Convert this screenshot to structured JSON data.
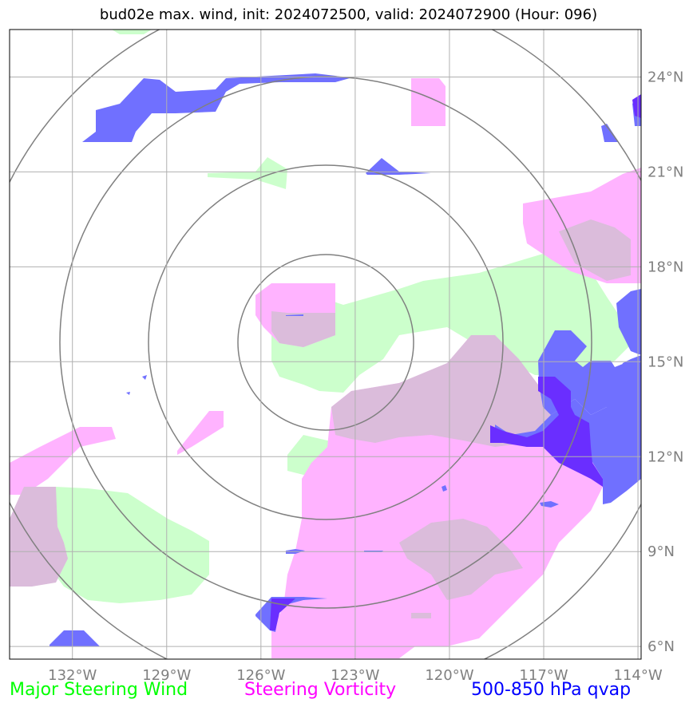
{
  "title": "bud02e max. wind, init: 2024072500, valid: 2024072900 (Hour: 096)",
  "map": {
    "lon_ticks": [
      {
        "lon": -132,
        "label": "132°W"
      },
      {
        "lon": -129,
        "label": "129°W"
      },
      {
        "lon": -126,
        "label": "126°W"
      },
      {
        "lon": -123,
        "label": "123°W"
      },
      {
        "lon": -120,
        "label": "120°W"
      },
      {
        "lon": -117,
        "label": "117°W"
      },
      {
        "lon": -114,
        "label": "114°W"
      }
    ],
    "lat_ticks": [
      {
        "lat": 6,
        "label": "6°N"
      },
      {
        "lat": 9,
        "label": "9°N"
      },
      {
        "lat": 12,
        "label": "12°N"
      },
      {
        "lat": 15,
        "label": "15°N"
      },
      {
        "lat": 18,
        "label": "18°N"
      },
      {
        "lat": 21,
        "label": "21°N"
      },
      {
        "lat": 24,
        "label": "24°N"
      }
    ],
    "lon_range": [
      -134.0,
      -113.9
    ],
    "lat_range": [
      5.6,
      25.5
    ],
    "range_rings_center": {
      "lon": -123.9,
      "lat": 15.7
    },
    "colors": {
      "wind": "#ccffcc",
      "vorticity": "#ffb3ff",
      "overlap": "#dbbcdb",
      "qvap": "#7070ff",
      "qvap_dense": "#6a2eff",
      "rings": "#808080",
      "grid": "#b0b0b0",
      "tick_text": "#808080"
    }
  },
  "legend": {
    "wind": {
      "label": "Major Steering Wind",
      "color": "#00ff00"
    },
    "vorticity": {
      "label": "Steering Vorticity",
      "color": "#ff00ff"
    },
    "qvap": {
      "label": "500-850 hPa qvap",
      "color": "#0000ff"
    }
  }
}
